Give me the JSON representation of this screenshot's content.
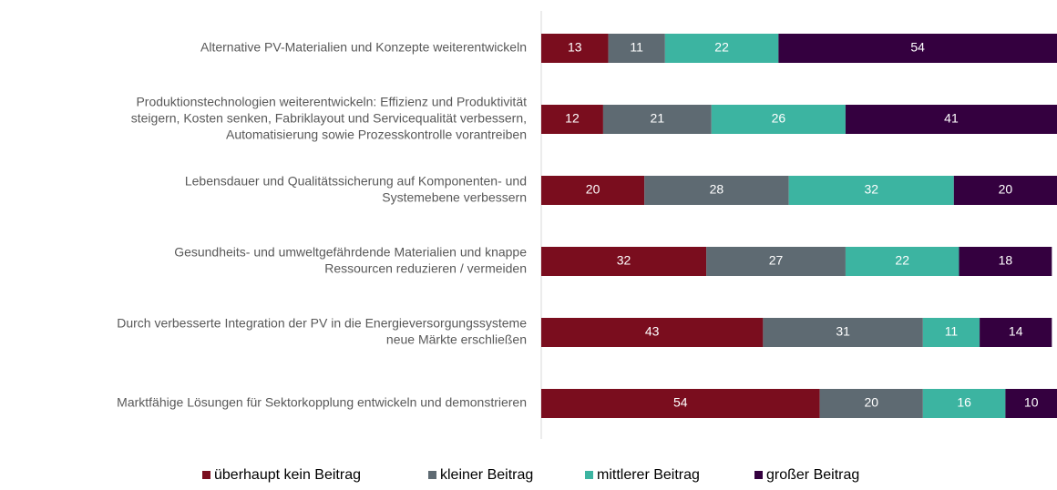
{
  "chart_data": {
    "type": "stacked_barh",
    "categories": [
      [
        "Alternative PV-Materialien und Konzepte weiterentwickeln"
      ],
      [
        "Produktionstechnologien weiterentwickeln: Effizienz und Produktivität",
        "steigern, Kosten senken, Fabriklayout und Servicequalität verbessern,",
        "Automatisierung sowie Prozesskontrolle vorantreiben"
      ],
      [
        "Lebensdauer und Qualitätssicherung auf Komponenten- und",
        "Systemebene verbessern"
      ],
      [
        "Gesundheits- und umweltgefährdende Materialien und knappe",
        "Ressourcen reduzieren / vermeiden"
      ],
      [
        "Durch verbesserte Integration der PV in die Energieversorgungssysteme",
        "neue Märkte erschließen"
      ],
      [
        "Marktfähige Lösungen für Sektorkopplung entwickeln und demonstrieren"
      ]
    ],
    "series": [
      {
        "name": "überhaupt kein Beitrag",
        "color": "#7a0d1e",
        "values": [
          13,
          12,
          20,
          32,
          43,
          54
        ]
      },
      {
        "name": "kleiner Beitrag",
        "color": "#5e6a72",
        "values": [
          11,
          21,
          28,
          27,
          31,
          20
        ]
      },
      {
        "name": "mittlerer Beitrag",
        "color": "#3cb4a1",
        "values": [
          22,
          26,
          32,
          22,
          11,
          16
        ]
      },
      {
        "name": "großer Beitrag",
        "color": "#34003f",
        "values": [
          54,
          41,
          20,
          18,
          14,
          10
        ]
      }
    ],
    "xlim": [
      0,
      100
    ],
    "legend": "bottom"
  }
}
